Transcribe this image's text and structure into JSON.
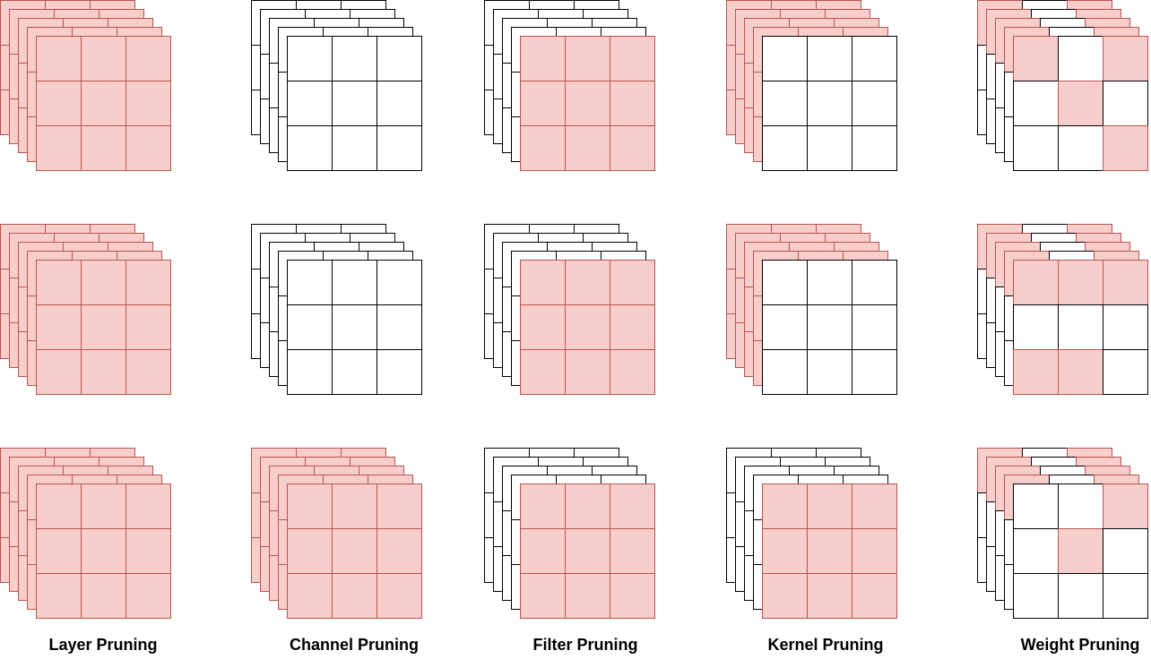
{
  "colors": {
    "pruned_fill": "#f8cecc",
    "pruned_stroke": "#b85450",
    "kept_fill": "#ffffff",
    "kept_stroke": "#000000"
  },
  "columns": [
    {
      "label": "Layer Pruning",
      "rows": [
        {
          "back_all_pruned": true,
          "back_top_row_pruned": false,
          "back_left_col_pruned": false,
          "back_partial_cells": [],
          "front_cells": [
            1,
            1,
            1,
            1,
            1,
            1,
            1,
            1,
            1
          ]
        },
        {
          "back_all_pruned": true,
          "back_top_row_pruned": false,
          "back_left_col_pruned": false,
          "back_partial_cells": [],
          "front_cells": [
            1,
            1,
            1,
            1,
            1,
            1,
            1,
            1,
            1
          ]
        },
        {
          "back_all_pruned": true,
          "back_top_row_pruned": false,
          "back_left_col_pruned": false,
          "back_partial_cells": [],
          "front_cells": [
            1,
            1,
            1,
            1,
            1,
            1,
            1,
            1,
            1
          ]
        }
      ]
    },
    {
      "label": "Channel Pruning",
      "rows": [
        {
          "back_all_pruned": false,
          "back_top_row_pruned": false,
          "back_left_col_pruned": false,
          "back_partial_cells": [],
          "front_cells": [
            0,
            0,
            0,
            0,
            0,
            0,
            0,
            0,
            0
          ]
        },
        {
          "back_all_pruned": false,
          "back_top_row_pruned": false,
          "back_left_col_pruned": false,
          "back_partial_cells": [],
          "front_cells": [
            0,
            0,
            0,
            0,
            0,
            0,
            0,
            0,
            0
          ]
        },
        {
          "back_all_pruned": true,
          "back_top_row_pruned": false,
          "back_left_col_pruned": false,
          "back_partial_cells": [],
          "front_cells": [
            1,
            1,
            1,
            1,
            1,
            1,
            1,
            1,
            1
          ]
        }
      ]
    },
    {
      "label": "Filter Pruning",
      "rows": [
        {
          "back_all_pruned": false,
          "back_top_row_pruned": false,
          "back_left_col_pruned": false,
          "back_partial_cells": [],
          "front_cells": [
            1,
            1,
            1,
            1,
            1,
            1,
            1,
            1,
            1
          ]
        },
        {
          "back_all_pruned": false,
          "back_top_row_pruned": false,
          "back_left_col_pruned": false,
          "back_partial_cells": [],
          "front_cells": [
            1,
            1,
            1,
            1,
            1,
            1,
            1,
            1,
            1
          ]
        },
        {
          "back_all_pruned": false,
          "back_top_row_pruned": false,
          "back_left_col_pruned": false,
          "back_partial_cells": [],
          "front_cells": [
            1,
            1,
            1,
            1,
            1,
            1,
            1,
            1,
            1
          ]
        }
      ]
    },
    {
      "label": "Kernel Pruning",
      "rows": [
        {
          "back_all_pruned": false,
          "back_top_row_pruned": true,
          "back_left_col_pruned": true,
          "back_partial_cells": [],
          "front_cells": [
            0,
            0,
            0,
            0,
            0,
            0,
            0,
            0,
            0
          ]
        },
        {
          "back_all_pruned": false,
          "back_top_row_pruned": true,
          "back_left_col_pruned": true,
          "back_partial_cells": [],
          "front_cells": [
            0,
            0,
            0,
            0,
            0,
            0,
            0,
            0,
            0
          ]
        },
        {
          "back_all_pruned": false,
          "back_top_row_pruned": false,
          "back_left_col_pruned": false,
          "back_partial_cells": [],
          "front_cells": [
            1,
            1,
            1,
            1,
            1,
            1,
            1,
            1,
            1
          ]
        }
      ]
    },
    {
      "label": "Weight Pruning",
      "rows": [
        {
          "back_all_pruned": false,
          "back_top_row_pruned": false,
          "back_left_col_pruned": false,
          "back_partial_cells": [
            0,
            2
          ],
          "front_cells": [
            1,
            0,
            1,
            0,
            1,
            0,
            0,
            0,
            1
          ]
        },
        {
          "back_all_pruned": false,
          "back_top_row_pruned": false,
          "back_left_col_pruned": false,
          "back_partial_cells": [
            0,
            2
          ],
          "front_cells": [
            1,
            1,
            1,
            0,
            0,
            0,
            1,
            1,
            0
          ]
        },
        {
          "back_all_pruned": false,
          "back_top_row_pruned": false,
          "back_left_col_pruned": false,
          "back_partial_cells": [
            0,
            2
          ],
          "front_cells": [
            0,
            0,
            1,
            0,
            1,
            0,
            0,
            0,
            0
          ]
        }
      ]
    }
  ]
}
